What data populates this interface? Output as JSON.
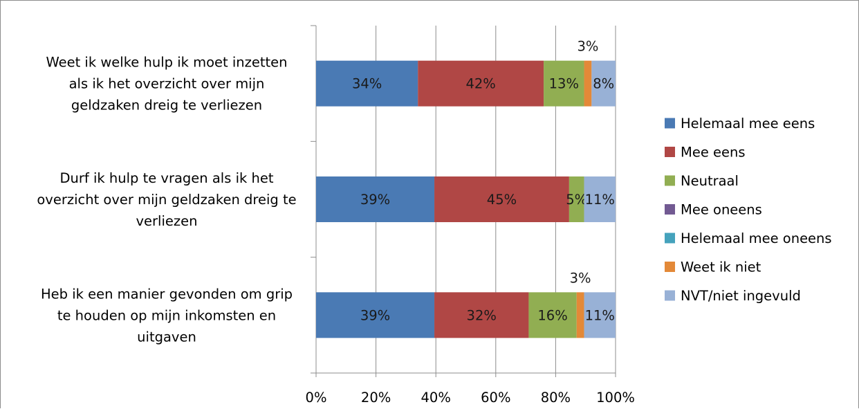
{
  "chart_data": {
    "type": "bar",
    "orientation": "horizontal",
    "stacked": "percent",
    "title": "",
    "xlabel": "",
    "ylabel": "",
    "xlim": [
      0,
      100
    ],
    "x_ticks": [
      "0%",
      "20%",
      "40%",
      "60%",
      "80%",
      "100%"
    ],
    "grid": true,
    "legend_position": "right",
    "categories": [
      [
        "Weet ik welke hulp ik moet inzetten",
        "als ik het overzicht over mijn",
        "geldzaken dreig te verliezen"
      ],
      [
        "Durf ik hulp te vragen als ik het",
        "overzicht over mijn geldzaken dreig te",
        "verliezen"
      ],
      [
        "Heb ik een manier gevonden om grip",
        "te houden op mijn inkomsten en",
        "uitgaven"
      ]
    ],
    "series": [
      {
        "name": "Helemaal mee eens",
        "color": "#4a7ab4",
        "values": [
          34,
          39.5,
          39.5
        ],
        "labels": [
          "34%",
          "39%",
          "39%"
        ]
      },
      {
        "name": "Mee eens",
        "color": "#b04745",
        "values": [
          42,
          45,
          31.5
        ],
        "labels": [
          "42%",
          "45%",
          "32%"
        ]
      },
      {
        "name": "Neutraal",
        "color": "#91ae52",
        "values": [
          13.5,
          5,
          16
        ],
        "labels": [
          "13%",
          "5%",
          "16%"
        ]
      },
      {
        "name": "Mee oneens",
        "color": "#725a92",
        "values": [
          0,
          0,
          0
        ],
        "labels": [
          "",
          "",
          ""
        ]
      },
      {
        "name": "Helemaal mee oneens",
        "color": "#45a2bc",
        "values": [
          0,
          0,
          0
        ],
        "labels": [
          "",
          "",
          ""
        ]
      },
      {
        "name": "Weet ik niet",
        "color": "#e38938",
        "values": [
          2.5,
          0,
          2.5
        ],
        "labels": [
          "3%",
          "",
          "3%"
        ]
      },
      {
        "name": "NVT/niet ingevuld",
        "color": "#98b1d6",
        "values": [
          8,
          10.5,
          10.5
        ],
        "labels": [
          "8%",
          "11%",
          "11%"
        ]
      }
    ]
  }
}
